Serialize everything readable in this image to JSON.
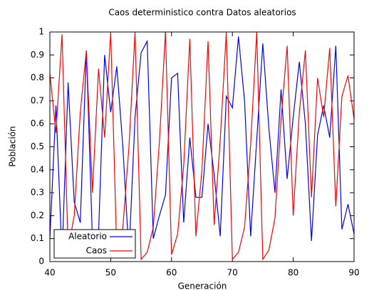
{
  "chart_data": {
    "type": "line",
    "title": "Caos deterministico contra Datos aleatorios",
    "xlabel": "Generación",
    "ylabel": "Población",
    "x": [
      40,
      41,
      42,
      43,
      44,
      45,
      46,
      47,
      48,
      49,
      50,
      51,
      52,
      53,
      54,
      55,
      56,
      57,
      58,
      59,
      60,
      61,
      62,
      63,
      64,
      65,
      66,
      67,
      68,
      69,
      70,
      71,
      72,
      73,
      74,
      75,
      76,
      77,
      78,
      79,
      80,
      81,
      82,
      83,
      84,
      85,
      86,
      87,
      88,
      89,
      90
    ],
    "series": [
      {
        "name": "Aleatorio",
        "color": "#0000ff",
        "values": [
          0.1,
          0.68,
          0.02,
          0.78,
          0.26,
          0.17,
          0.92,
          0.09,
          0.12,
          0.9,
          0.65,
          0.85,
          0.5,
          0.03,
          0.63,
          0.91,
          0.96,
          0.1,
          0.2,
          0.29,
          0.8,
          0.82,
          0.17,
          0.54,
          0.28,
          0.28,
          0.6,
          0.38,
          0.11,
          0.72,
          0.67,
          0.98,
          0.7,
          0.11,
          0.53,
          0.95,
          0.58,
          0.3,
          0.75,
          0.36,
          0.63,
          0.87,
          0.6,
          0.09,
          0.55,
          0.68,
          0.54,
          0.94,
          0.14,
          0.25,
          0.12
        ]
      },
      {
        "name": "Caos",
        "color": "#ff0000",
        "values": [
          0.82,
          0.56,
          0.99,
          0.05,
          0.2,
          0.65,
          0.92,
          0.3,
          0.84,
          0.54,
          1.0,
          0.04,
          0.15,
          0.5,
          1.0,
          0.01,
          0.04,
          0.15,
          0.52,
          1.0,
          0.03,
          0.12,
          0.42,
          0.97,
          0.11,
          0.4,
          0.96,
          0.16,
          0.53,
          1.0,
          0.01,
          0.04,
          0.15,
          0.51,
          1.0,
          0.01,
          0.05,
          0.19,
          0.62,
          0.94,
          0.2,
          0.65,
          0.92,
          0.28,
          0.8,
          0.63,
          0.93,
          0.24,
          0.72,
          0.81,
          0.62
        ]
      }
    ],
    "xlim": [
      40,
      90
    ],
    "xticks": [
      40,
      50,
      60,
      70,
      80,
      90
    ],
    "ylim": [
      0,
      1
    ],
    "yticks": [
      0,
      0.1,
      0.2,
      0.3,
      0.4,
      0.5,
      0.6,
      0.7,
      0.8,
      0.9,
      1
    ],
    "legend": "lower left"
  }
}
